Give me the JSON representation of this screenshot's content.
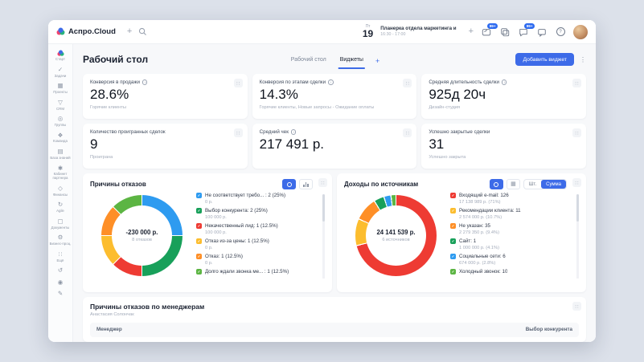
{
  "topbar": {
    "logo_text": "Аспро.Cloud",
    "date_weekday": "Пт",
    "date_day": "19",
    "event_title": "Планерка отдела маркетинга и",
    "event_time": "16:30 - 17:00",
    "messages_badge": "99+",
    "chat_badge": "99+"
  },
  "sidebar": {
    "items": [
      {
        "id": "start",
        "label": "Старт",
        "icon": "logo-icon"
      },
      {
        "id": "tasks",
        "label": "Задачи",
        "icon": "tasks-icon"
      },
      {
        "id": "projects",
        "label": "Проекты",
        "icon": "projects-icon"
      },
      {
        "id": "crm",
        "label": "CRM",
        "icon": "crm-funnel-icon"
      },
      {
        "id": "groups",
        "label": "Группы",
        "icon": "groups-icon"
      },
      {
        "id": "team",
        "label": "Команда",
        "icon": "team-icon"
      },
      {
        "id": "knowledge-base",
        "label": "База знаний",
        "icon": "knowledge-base-icon"
      },
      {
        "id": "partner-cabinet",
        "label": "Кабинет партнера",
        "icon": "partner-cabinet-icon"
      },
      {
        "id": "finance",
        "label": "Финансы",
        "icon": "finance-icon"
      },
      {
        "id": "agile",
        "label": "Agile",
        "icon": "agile-icon"
      },
      {
        "id": "documents",
        "label": "Документы",
        "icon": "documents-icon"
      },
      {
        "id": "business-processes",
        "label": "Бизнес-проц.",
        "icon": "business-processes-icon"
      },
      {
        "id": "more",
        "label": "Ещё",
        "icon": "more-grid-icon"
      },
      {
        "id": "sync",
        "label": "",
        "icon": "sync-icon"
      },
      {
        "id": "apps",
        "label": "",
        "icon": "apps-icon"
      },
      {
        "id": "pin",
        "label": "",
        "icon": "pin-icon"
      }
    ]
  },
  "header": {
    "title": "Рабочий стол",
    "tabs": [
      {
        "label": "Рабочий стол",
        "active": false
      },
      {
        "label": "Виджеты",
        "active": true
      }
    ],
    "add_tab_label": "+",
    "add_widget_button": "Добавить виджет"
  },
  "kpis": [
    {
      "title": "Конверсия в продажи",
      "info": true,
      "value": "28.6%",
      "subtitle": "Горячие клиенты"
    },
    {
      "title": "Конверсия по этапам сделки",
      "info": true,
      "value": "14.3%",
      "subtitle": "Горячие клиенты, Новые запросы - Ожидание оплаты"
    },
    {
      "title": "Средняя длительность сделки",
      "info": true,
      "value": "925д 20ч",
      "subtitle": "Дизайн-студия"
    },
    {
      "title": "Количество проигранных сделок",
      "info": false,
      "value": "9",
      "subtitle": "Проиграна"
    },
    {
      "title": "Средний чек",
      "info": true,
      "value": "217 491 р.",
      "subtitle": ""
    },
    {
      "title": "Успешно закрытые сделки",
      "info": false,
      "value": "31",
      "subtitle": "Успешно закрыта"
    }
  ],
  "chart_data": [
    {
      "type": "pie",
      "title": "Причины отказов",
      "center_value": "-230 000 р.",
      "center_label": "8 отказов",
      "legend_position": "right",
      "controls": {
        "icons": [
          "donut-chart-icon",
          "bar-chart-icon"
        ],
        "active_icon": "donut-chart-icon"
      },
      "segments": [
        {
          "label": "Не соответствует требо... : 2 (25%)",
          "sub": "0 р.",
          "value": 25,
          "color": "#2e9bf0"
        },
        {
          "label": "Выбор конкурента: 2 (25%)",
          "sub": "100 000 р.",
          "value": 25,
          "color": "#18a05a"
        },
        {
          "label": "Некачественный лид: 1 (12.5%)",
          "sub": "100 000 р.",
          "value": 12.5,
          "color": "#ee3b33"
        },
        {
          "label": "Отказ из-за цены: 1 (12.5%)",
          "sub": "0 р.",
          "value": 12.5,
          "color": "#fcbd2e"
        },
        {
          "label": "Отказ: 1 (12.5%)",
          "sub": "0 р.",
          "value": 12.5,
          "color": "#fe8f27"
        },
        {
          "label": "Долго ждали звонка ме... : 1 (12.5%)",
          "sub": "",
          "value": 12.5,
          "color": "#5cb543"
        }
      ]
    },
    {
      "type": "pie",
      "title": "Доходы по источникам",
      "center_value": "24 141 539 р.",
      "center_label": "6 источников",
      "legend_position": "right",
      "controls": {
        "icons": [
          "donut-chart-icon",
          "table-chart-icon"
        ],
        "active_icon": "donut-chart-icon",
        "toggle": {
          "options": [
            "Шт.",
            "Сумма"
          ],
          "active": "Сумма"
        }
      },
      "segments": [
        {
          "label": "Входящий e-mail: 126",
          "sub": "17 138 989 р. (71%)",
          "value": 71,
          "color": "#ee3b33"
        },
        {
          "label": "Рекомендации клиента: 11",
          "sub": "2 574 000 р. (10.7%)",
          "value": 10.7,
          "color": "#fcbd2e"
        },
        {
          "label": "Не указан: 35",
          "sub": "2 279 350 р. (9.4%)",
          "value": 9.4,
          "color": "#fe8f27"
        },
        {
          "label": "Сайт: 1",
          "sub": "1 000 000 р. (4.1%)",
          "value": 4.1,
          "color": "#18a05a"
        },
        {
          "label": "Социальные сети: 6",
          "sub": "674 000 р. (2.8%)",
          "value": 2.8,
          "color": "#2e9bf0"
        },
        {
          "label": "Холодный звонок: 10",
          "sub": "",
          "value": 2.0,
          "color": "#5cb543"
        }
      ]
    }
  ],
  "managers_widget": {
    "title": "Причины отказов по менеджерам",
    "subtitle": "Анастасия Солончак",
    "columns": [
      "Менеджер",
      "Выбор конкурента"
    ]
  }
}
